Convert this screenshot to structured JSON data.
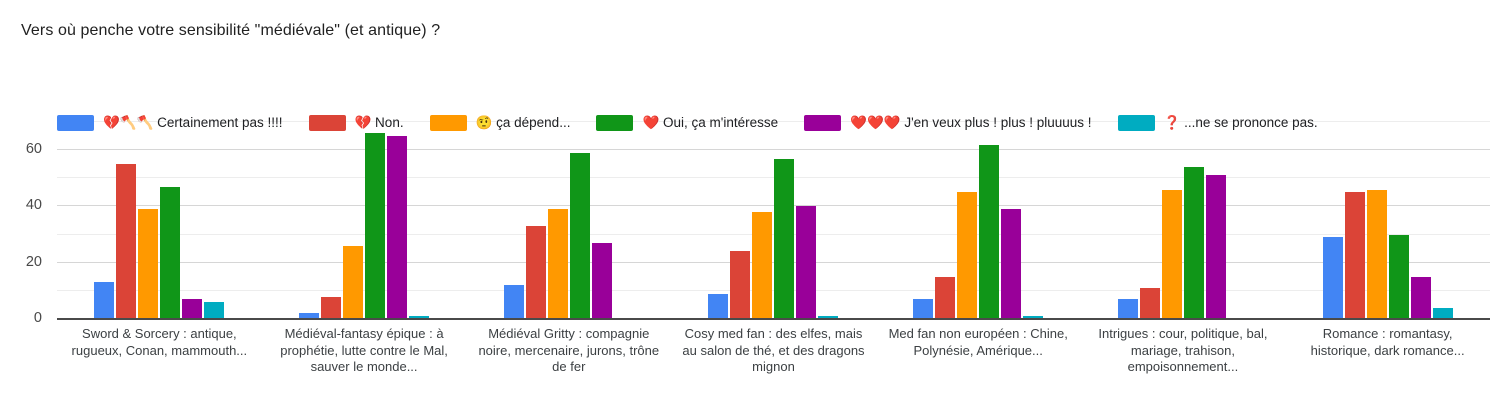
{
  "chart_data": {
    "type": "bar",
    "title": "Vers où penche votre sensibilité \"médiévale\" (et antique) ?",
    "categories": [
      "Sword & Sorcery : antique, rugueux, Conan, mammouth...",
      "Médiéval-fantasy épique : à prophétie, lutte contre le Mal, sauver le monde...",
      "Médiéval Gritty : compagnie noire, mercenaire, jurons, trône de fer",
      "Cosy med fan : des elfes, mais au salon de thé, et des dragons mignon",
      "Med fan non européen : Chine, Polynésie, Amérique...",
      "Intrigues : cour, politique, bal, mariage, trahison, empoisonnement...",
      "Romance : romantasy, historique, dark romance..."
    ],
    "series": [
      {
        "name": "💔🪓🪓 Certainement pas !!!!",
        "color": "#4285f4",
        "values": [
          13,
          2,
          12,
          9,
          7,
          7,
          29
        ]
      },
      {
        "name": "💔 Non.",
        "color": "#db4437",
        "values": [
          55,
          8,
          33,
          24,
          15,
          11,
          45
        ]
      },
      {
        "name": "🤨 ça dépend...",
        "color": "#ff9900",
        "values": [
          39,
          26,
          39,
          38,
          45,
          46,
          46
        ]
      },
      {
        "name": "❤️ Oui, ça m'intéresse",
        "color": "#109618",
        "values": [
          47,
          66,
          59,
          57,
          62,
          54,
          30
        ]
      },
      {
        "name": "❤️❤️❤️ J'en veux plus ! plus ! pluuuus !",
        "color": "#990099",
        "values": [
          7,
          65,
          27,
          40,
          39,
          51,
          15
        ]
      },
      {
        "name": "❓ ...ne se prononce pas.",
        "color": "#00acc1",
        "values": [
          6,
          1,
          0,
          1,
          1,
          0,
          4
        ]
      }
    ],
    "ylabel": "",
    "xlabel": "",
    "yticks": [
      0,
      20,
      40,
      60
    ],
    "minor_ticks": [
      10,
      30,
      50,
      70
    ],
    "ylim": [
      0,
      70
    ],
    "grid": "horizontal",
    "legend_position": "top"
  }
}
